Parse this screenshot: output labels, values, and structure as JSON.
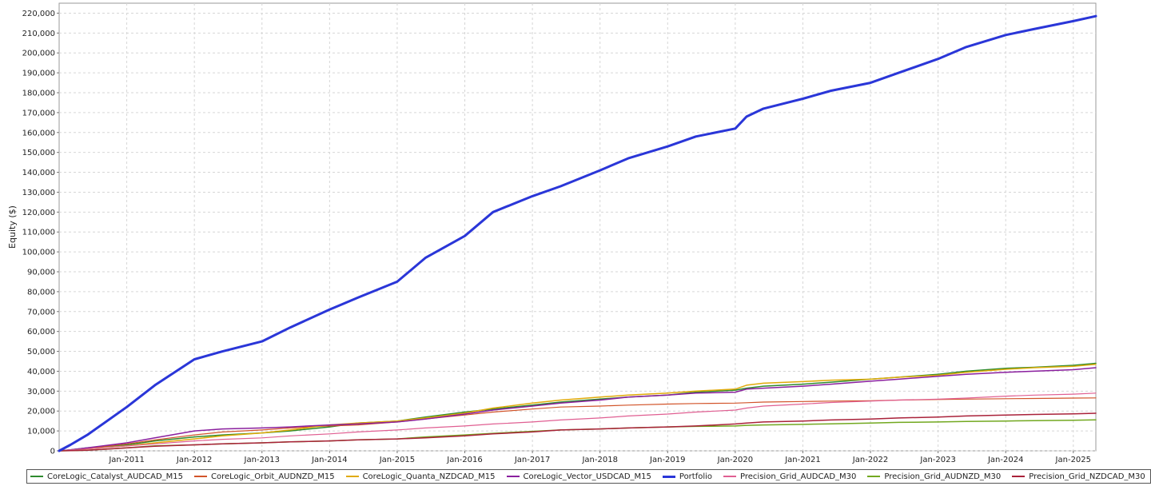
{
  "chart_data": {
    "type": "line",
    "title": "",
    "xlabel": "",
    "ylabel": "Equity ($)",
    "ylim": [
      0,
      225000
    ],
    "xlim": [
      "2010-01",
      "2025-05"
    ],
    "grid": true,
    "legend_position": "bottom",
    "x_tick_labels": [
      "Jan-2011",
      "Jan-2012",
      "Jan-2013",
      "Jan-2014",
      "Jan-2015",
      "Jan-2016",
      "Jan-2017",
      "Jan-2018",
      "Jan-2019",
      "Jan-2020",
      "Jan-2021",
      "Jan-2022",
      "Jan-2023",
      "Jan-2024",
      "Jan-2025"
    ],
    "y_tick_labels": [
      "0",
      "10,000",
      "20,000",
      "30,000",
      "40,000",
      "50,000",
      "60,000",
      "70,000",
      "80,000",
      "90,000",
      "100,000",
      "110,000",
      "120,000",
      "130,000",
      "140,000",
      "150,000",
      "160,000",
      "170,000",
      "180,000",
      "190,000",
      "200,000",
      "210,000",
      "220,000"
    ],
    "y_tick_values": [
      0,
      10000,
      20000,
      30000,
      40000,
      50000,
      60000,
      70000,
      80000,
      90000,
      100000,
      110000,
      120000,
      130000,
      140000,
      150000,
      160000,
      170000,
      180000,
      190000,
      200000,
      210000,
      220000
    ],
    "x": [
      "2010-01",
      "2010-03",
      "2010-06",
      "2011-01",
      "2011-06",
      "2012-01",
      "2012-06",
      "2013-01",
      "2013-06",
      "2014-01",
      "2014-06",
      "2015-01",
      "2015-06",
      "2016-01",
      "2016-06",
      "2017-01",
      "2017-06",
      "2018-01",
      "2018-06",
      "2019-01",
      "2019-06",
      "2020-01",
      "2020-03",
      "2020-06",
      "2021-01",
      "2021-06",
      "2022-01",
      "2022-06",
      "2023-01",
      "2023-06",
      "2024-01",
      "2024-06",
      "2025-01",
      "2025-05"
    ],
    "series": [
      {
        "name": "CoreLogic_Catalyst_AUDCAD_M15",
        "color": "#2e8b2e",
        "width": 1.5,
        "values": [
          0,
          500,
          1500,
          3000,
          5000,
          7000,
          8000,
          9000,
          10000,
          12000,
          14000,
          15000,
          17000,
          19500,
          21000,
          23000,
          24500,
          26000,
          27000,
          28000,
          29500,
          30500,
          31500,
          32500,
          33500,
          34500,
          36000,
          37000,
          38500,
          40000,
          41500,
          42000,
          43000,
          44000
        ]
      },
      {
        "name": "CoreLogic_Orbit_AUDNZD_M15",
        "color": "#d2542a",
        "width": 1.2,
        "values": [
          0,
          400,
          1200,
          3500,
          5500,
          8000,
          9500,
          10500,
          11500,
          12500,
          13000,
          14500,
          16000,
          18000,
          19500,
          21000,
          22000,
          22500,
          23000,
          23500,
          23800,
          24000,
          24200,
          24500,
          24800,
          25000,
          25200,
          25500,
          25800,
          26000,
          26200,
          26300,
          26500,
          26600
        ]
      },
      {
        "name": "CoreLogic_Quanta_NZDCAD_M15",
        "color": "#e0aa0a",
        "width": 1.5,
        "values": [
          0,
          300,
          1000,
          2500,
          4000,
          6000,
          7500,
          9000,
          10500,
          13000,
          14000,
          15000,
          16500,
          19000,
          21500,
          24000,
          25500,
          27000,
          28000,
          29000,
          30000,
          31000,
          33000,
          34000,
          34800,
          35500,
          36000,
          37000,
          38000,
          39500,
          41000,
          41800,
          42500,
          43500
        ]
      },
      {
        "name": "CoreLogic_Vector_USDCAD_M15",
        "color": "#8a1f9e",
        "width": 1.5,
        "values": [
          0,
          500,
          1500,
          4000,
          6500,
          10000,
          11000,
          11500,
          12000,
          13000,
          13500,
          14500,
          16000,
          18500,
          20500,
          22500,
          24000,
          25500,
          27000,
          28000,
          29000,
          29500,
          31000,
          31500,
          32500,
          33500,
          35000,
          36000,
          37500,
          38500,
          39500,
          40000,
          40800,
          41800
        ]
      },
      {
        "name": "Portfolio",
        "color": "#2a36d8",
        "width": 3,
        "values": [
          0,
          3000,
          8000,
          22000,
          33000,
          46000,
          50000,
          55000,
          62000,
          71000,
          77000,
          85000,
          97000,
          108000,
          120000,
          128000,
          133000,
          141000,
          147000,
          153000,
          158000,
          162000,
          168000,
          172000,
          177000,
          181000,
          185000,
          190000,
          197000,
          203000,
          209000,
          212000,
          216000,
          218500
        ]
      },
      {
        "name": "Precision_Grid_AUDCAD_M30",
        "color": "#e05f92",
        "width": 1.2,
        "values": [
          0,
          400,
          1000,
          2500,
          3500,
          5000,
          5800,
          6500,
          7500,
          8500,
          9500,
          10500,
          11500,
          12500,
          13500,
          14500,
          15500,
          16500,
          17500,
          18500,
          19500,
          20500,
          21500,
          22500,
          23500,
          24300,
          25000,
          25500,
          26000,
          26500,
          27500,
          28000,
          28500,
          29000
        ]
      },
      {
        "name": "Precision_Grid_AUDNZD_M30",
        "color": "#72a820",
        "width": 1.5,
        "values": [
          0,
          100,
          300,
          1500,
          2500,
          3000,
          3500,
          4000,
          4500,
          5000,
          5500,
          6000,
          7000,
          8000,
          8800,
          9800,
          10500,
          11000,
          11500,
          12000,
          12300,
          12500,
          12800,
          13000,
          13300,
          13600,
          14000,
          14300,
          14500,
          14800,
          15000,
          15200,
          15400,
          15600
        ]
      },
      {
        "name": "Precision_Grid_NZDCAD_M30",
        "color": "#a9223a",
        "width": 1.5,
        "values": [
          0,
          100,
          300,
          1500,
          2300,
          3000,
          3500,
          4000,
          4500,
          5000,
          5500,
          6000,
          6500,
          7500,
          8500,
          9500,
          10500,
          11000,
          11500,
          12000,
          12500,
          13500,
          14000,
          14500,
          15000,
          15500,
          16000,
          16500,
          17000,
          17500,
          18000,
          18300,
          18600,
          18900
        ]
      }
    ]
  }
}
